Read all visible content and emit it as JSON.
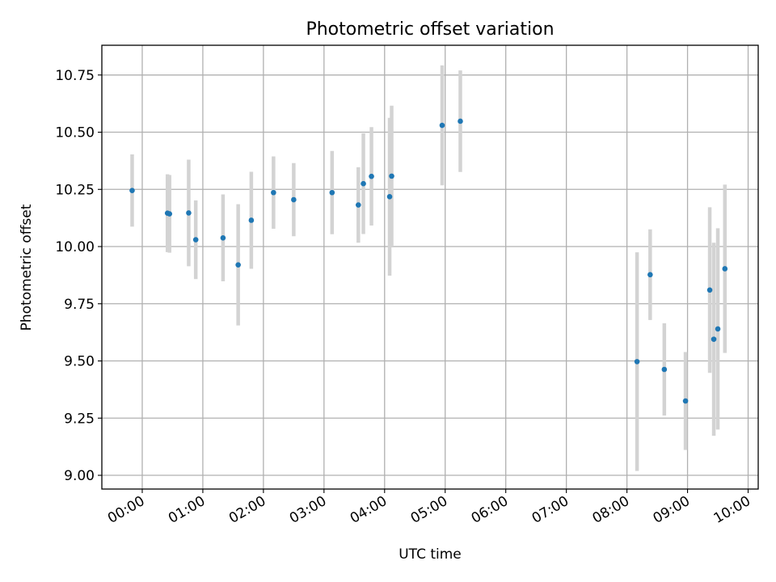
{
  "chart_data": {
    "type": "scatter",
    "title": "Photometric offset variation",
    "xlabel": "UTC time",
    "ylabel": "Photometric offset",
    "x_tick_labels": [
      "00:00",
      "01:00",
      "02:00",
      "03:00",
      "04:00",
      "05:00",
      "06:00",
      "07:00",
      "08:00",
      "09:00",
      "10:00"
    ],
    "x_tick_hours": [
      0,
      1,
      2,
      3,
      4,
      5,
      6,
      7,
      8,
      9,
      10
    ],
    "y_ticks": [
      9.0,
      9.25,
      9.5,
      9.75,
      10.0,
      10.25,
      10.5,
      10.75
    ],
    "y_tick_labels": [
      "9.00",
      "9.25",
      "9.50",
      "9.75",
      "10.00",
      "10.25",
      "10.50",
      "10.75"
    ],
    "xlim": [
      "23:20",
      "10:10"
    ],
    "ylim": [
      8.94,
      10.88
    ],
    "grid": true,
    "marker_color": "#1f77b4",
    "errorbar_color": "#d3d3d3",
    "points": [
      {
        "time": "23:50",
        "y": 10.245,
        "err": 0.158
      },
      {
        "time": "00:25",
        "y": 10.146,
        "err": 0.17
      },
      {
        "time": "00:27",
        "y": 10.143,
        "err": 0.17
      },
      {
        "time": "00:46",
        "y": 10.147,
        "err": 0.233
      },
      {
        "time": "00:53",
        "y": 10.03,
        "err": 0.172
      },
      {
        "time": "01:20",
        "y": 10.038,
        "err": 0.19
      },
      {
        "time": "01:35",
        "y": 9.92,
        "err": 0.265
      },
      {
        "time": "01:48",
        "y": 10.115,
        "err": 0.212
      },
      {
        "time": "02:10",
        "y": 10.236,
        "err": 0.158
      },
      {
        "time": "02:30",
        "y": 10.205,
        "err": 0.16
      },
      {
        "time": "03:08",
        "y": 10.236,
        "err": 0.182
      },
      {
        "time": "03:34",
        "y": 10.182,
        "err": 0.165
      },
      {
        "time": "03:39",
        "y": 10.275,
        "err": 0.22
      },
      {
        "time": "03:47",
        "y": 10.307,
        "err": 0.215
      },
      {
        "time": "04:05",
        "y": 10.218,
        "err": 0.345
      },
      {
        "time": "04:07",
        "y": 10.308,
        "err": 0.308
      },
      {
        "time": "04:57",
        "y": 10.53,
        "err": 0.262
      },
      {
        "time": "05:15",
        "y": 10.548,
        "err": 0.222
      },
      {
        "time": "08:10",
        "y": 9.497,
        "err": 0.478
      },
      {
        "time": "08:23",
        "y": 9.877,
        "err": 0.198
      },
      {
        "time": "08:37",
        "y": 9.463,
        "err": 0.202
      },
      {
        "time": "08:58",
        "y": 9.325,
        "err": 0.214
      },
      {
        "time": "09:22",
        "y": 9.81,
        "err": 0.362
      },
      {
        "time": "09:26",
        "y": 9.595,
        "err": 0.422
      },
      {
        "time": "09:30",
        "y": 9.64,
        "err": 0.44
      },
      {
        "time": "09:37",
        "y": 9.903,
        "err": 0.368
      }
    ]
  }
}
